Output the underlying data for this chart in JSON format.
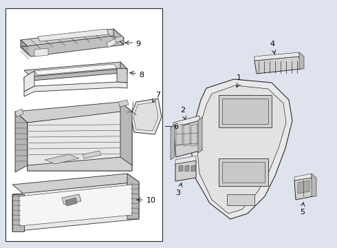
{
  "bg_color": "#dfe3ed",
  "left_box_bg": "#f0f0f0",
  "right_bg": "#ffffff",
  "line_color": "#2a2a2a",
  "fill_light": "#e8e8e8",
  "fill_mid": "#d0d0d0",
  "fill_dark": "#b8b8b8",
  "fill_white": "#f5f5f5",
  "figsize": [
    4.9,
    3.6
  ],
  "dpi": 100
}
